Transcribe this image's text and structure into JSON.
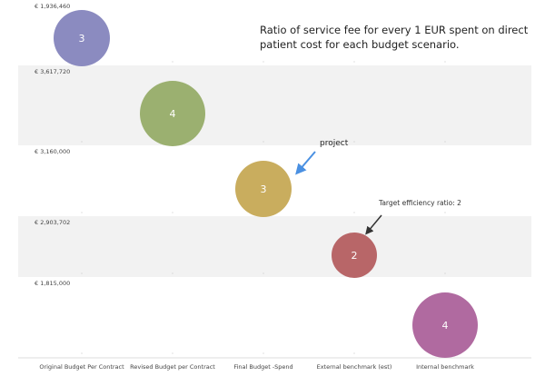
{
  "chart_data": {
    "type": "bubble",
    "title": "Ratio of service fee for every 1 EUR spent on direct patient cost for each budget scenario.",
    "categories": [
      "Original Budget Per Contract",
      "Revised Budget per Contract",
      "Final Budget -Spend",
      "External benchmark (est)",
      "Internal benchmark"
    ],
    "row_labels": [
      "€ 1,936,460",
      "€ 3,617,720",
      "€ 3,160,000",
      "€ 2,903,702",
      "€ 1,815,000"
    ],
    "values": [
      3,
      4,
      3,
      2,
      4
    ],
    "colors": [
      "#8b8bc0",
      "#9bb070",
      "#c9ad5e",
      "#b86668",
      "#b06aa0"
    ],
    "annotations": [
      {
        "text": "project",
        "target_category": "Final Budget -Spend",
        "arrow_color": "#4a90e2"
      },
      {
        "text": "Target efficiency ratio: 2",
        "target_category": "External benchmark (est)",
        "arrow_color": "#333333"
      }
    ],
    "grid": "alternating bands",
    "legend": "none"
  }
}
